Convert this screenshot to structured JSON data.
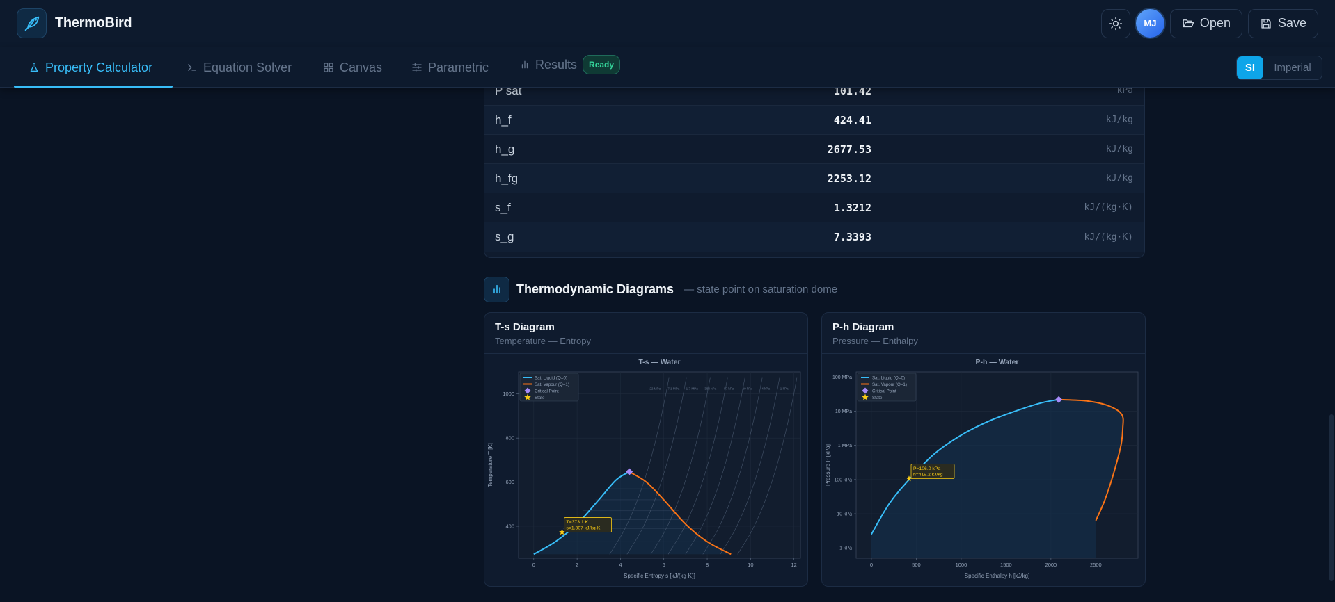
{
  "app": {
    "name": "ThermoBird"
  },
  "header": {
    "avatar_initials": "MJ",
    "open_label": "Open",
    "save_label": "Save"
  },
  "tabs": [
    {
      "label": "Property Calculator",
      "icon": "flask-icon",
      "active": true
    },
    {
      "label": "Equation Solver",
      "icon": "terminal-icon",
      "active": false
    },
    {
      "label": "Canvas",
      "icon": "grid-icon",
      "active": false
    },
    {
      "label": "Parametric",
      "icon": "sliders-icon",
      "active": false
    },
    {
      "label": "Results",
      "icon": "bar-chart-icon",
      "active": false,
      "badge": "Ready"
    }
  ],
  "units": {
    "si_label": "SI",
    "imperial_label": "Imperial",
    "selected": "SI"
  },
  "properties": [
    {
      "name": "P sat",
      "value": "101.42",
      "unit": "kPa"
    },
    {
      "name": "h_f",
      "value": "424.41",
      "unit": "kJ/kg"
    },
    {
      "name": "h_g",
      "value": "2677.53",
      "unit": "kJ/kg"
    },
    {
      "name": "h_fg",
      "value": "2253.12",
      "unit": "kJ/kg"
    },
    {
      "name": "s_f",
      "value": "1.3212",
      "unit": "kJ/(kg·K)"
    },
    {
      "name": "s_g",
      "value": "7.3393",
      "unit": "kJ/(kg·K)"
    }
  ],
  "diagrams_section": {
    "title": "Thermodynamic Diagrams",
    "subtitle": "— state point on saturation dome"
  },
  "ts_card": {
    "title": "T-s Diagram",
    "subtitle": "Temperature — Entropy"
  },
  "ph_card": {
    "title": "P-h Diagram",
    "subtitle": "Pressure — Enthalpy"
  },
  "colors": {
    "accent": "#38bdf8",
    "liquid": "#38bdf8",
    "vapour": "#f97316",
    "critical": "#a78bfa",
    "state": "#facc15",
    "badge": "#34d399"
  },
  "chart_data": [
    {
      "type": "line",
      "title": "T-s — Water",
      "xlabel": "Specific Entropy  s  [kJ/(kg·K)]",
      "ylabel": "Temperature  T  [K]",
      "xlim": [
        -0.7,
        12.3
      ],
      "ylim": [
        255,
        1100
      ],
      "xticks": [
        0,
        2,
        4,
        6,
        8,
        10,
        12
      ],
      "yticks": [
        400,
        600,
        800,
        1000
      ],
      "grid": true,
      "legend_position": "top-left",
      "legend": [
        "Sat. Liquid (Q=0)",
        "Sat. Vapour (Q=1)",
        "Critical Point",
        "State"
      ],
      "series": [
        {
          "name": "Sat. Liquid (Q=0)",
          "x": [
            0.0,
            1.0,
            2.0,
            3.0,
            3.8,
            4.41
          ],
          "y": [
            273,
            330,
            410,
            520,
            610,
            647
          ]
        },
        {
          "name": "Sat. Vapour (Q=1)",
          "x": [
            4.41,
            5.2,
            6.0,
            7.0,
            8.0,
            9.1
          ],
          "y": [
            647,
            600,
            520,
            410,
            330,
            273
          ]
        }
      ],
      "isobar_labels": [
        "22 MPa",
        "7.1 MPa",
        "1.7 MPa",
        "383 kPa",
        "87 kPa",
        "20 kPa",
        "4 kPa",
        "1 kPa"
      ],
      "critical_point": {
        "x": 4.41,
        "y": 647
      },
      "state": {
        "x": 1.307,
        "y": 373.1,
        "label": [
          "T=373.1 K",
          "s=1.307 kJ/kg·K"
        ]
      }
    },
    {
      "type": "line",
      "title": "P-h — Water",
      "xlabel": "Specific Enthalpy  h  [kJ/kg]",
      "ylabel": "Pressure  P  [kPa]",
      "xlim": [
        -170,
        2970
      ],
      "ylim_log10": [
        -0.3,
        2.3
      ],
      "xticks": [
        0,
        500,
        1000,
        1500,
        2000,
        2500
      ],
      "yticks": [
        "100 MPa",
        "10 MPa",
        "1 MPa",
        "100 kPa",
        "10 kPa",
        "1 kPa"
      ],
      "y_scale": "log",
      "grid": true,
      "legend_position": "top-left",
      "legend": [
        "Sat. Liquid (Q=0)",
        "Sat. Vapour (Q=1)",
        "Critical Point",
        "State"
      ],
      "series": [
        {
          "name": "Sat. Liquid (Q=0)",
          "h": [
            0,
            200,
            420,
            700,
            1000,
            1300,
            1600,
            1900,
            2087
          ],
          "log10_MPa": [
            -2.6,
            -1.7,
            -1.0,
            -0.25,
            0.3,
            0.7,
            1.0,
            1.25,
            1.34
          ]
        },
        {
          "name": "Sat. Vapour (Q=1)",
          "h": [
            2087,
            2400,
            2650,
            2790,
            2800,
            2780,
            2700,
            2600,
            2500
          ],
          "log10_MPa": [
            1.34,
            1.3,
            1.15,
            0.9,
            0.5,
            0.0,
            -0.8,
            -1.6,
            -2.2
          ]
        }
      ],
      "critical_point": {
        "h": 2087,
        "P": "22 MPa"
      },
      "state": {
        "h": 419.2,
        "P": "106.0 kPa",
        "label": [
          "P=106.0 kPa",
          "h=419.2 kJ/kg"
        ]
      }
    }
  ]
}
